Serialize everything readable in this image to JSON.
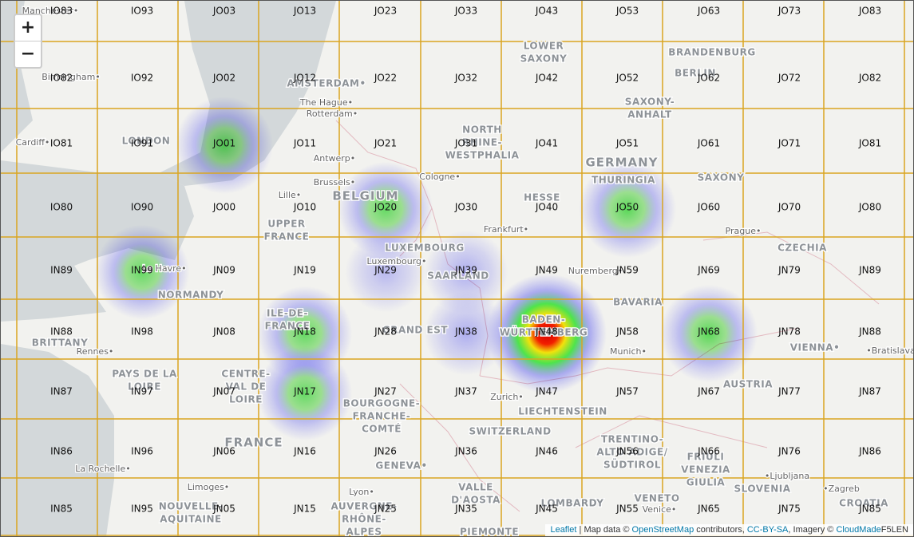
{
  "zoom": {
    "in": "+",
    "out": "−"
  },
  "grid": {
    "rows": [
      [
        "IO83",
        "IO93",
        "JO03",
        "JO13",
        "JO23",
        "JO33",
        "JO43",
        "JO53",
        "JO63",
        "JO73",
        "JO83"
      ],
      [
        "IO82",
        "IO92",
        "JO02",
        "JO12",
        "JO22",
        "JO32",
        "JO42",
        "JO52",
        "JO62",
        "JO72",
        "JO82"
      ],
      [
        "IO81",
        "IO91",
        "JO01",
        "JO11",
        "JO21",
        "JO31",
        "JO41",
        "JO51",
        "JO61",
        "JO71",
        "JO81"
      ],
      [
        "IO80",
        "IO90",
        "JO00",
        "JO10",
        "JO20",
        "JO30",
        "JO40",
        "JO50",
        "JO60",
        "JO70",
        "JO80"
      ],
      [
        "IN89",
        "IN99",
        "JN09",
        "JN19",
        "JN29",
        "JN39",
        "JN49",
        "JN59",
        "JN69",
        "JN79",
        "JN89"
      ],
      [
        "IN88",
        "IN98",
        "JN08",
        "JN18",
        "JN28",
        "JN38",
        "JN48",
        "JN58",
        "JN68",
        "JN78",
        "JN88"
      ],
      [
        "IN87",
        "IN97",
        "JN07",
        "JN17",
        "JN27",
        "JN37",
        "JN47",
        "JN57",
        "JN67",
        "JN77",
        "JN87"
      ],
      [
        "IN86",
        "IN96",
        "JN06",
        "JN16",
        "JN26",
        "JN36",
        "JN46",
        "JN56",
        "JN66",
        "JN76",
        "JN86"
      ],
      [
        "IN85",
        "IN95",
        "JN05",
        "JN15",
        "JN25",
        "JN35",
        "JN45",
        "JN55",
        "JN65",
        "JN75",
        "JN85"
      ]
    ]
  },
  "heat": [
    {
      "cell": "JO01",
      "level": 0.6
    },
    {
      "cell": "IN99",
      "level": 0.55
    },
    {
      "cell": "JO20",
      "level": 0.55
    },
    {
      "cell": "JN29",
      "level": 0.3
    },
    {
      "cell": "JN39",
      "level": 0.35
    },
    {
      "cell": "JN38",
      "level": 0.35
    },
    {
      "cell": "JN48",
      "level": 1.0
    },
    {
      "cell": "JO50",
      "level": 0.6
    },
    {
      "cell": "JN68",
      "level": 0.6
    },
    {
      "cell": "JN18",
      "level": 0.55
    },
    {
      "cell": "JN17",
      "level": 0.55
    }
  ],
  "places": [
    [
      "Manchester•"
    ],
    [
      "Birmingham•"
    ],
    [
      "Cardiff•"
    ],
    [
      "LONDON"
    ],
    [
      "AMSTERDAM•"
    ],
    [
      "The Hague•"
    ],
    [
      "Rotterdam•"
    ],
    [
      "Antwerp•"
    ],
    [
      "Brussels•"
    ],
    [
      "BELGIUM"
    ],
    [
      "Lille•"
    ],
    [
      "UPPER",
      "FRANCE"
    ],
    [
      "LUXEMBOURG"
    ],
    [
      "Luxembourg•"
    ],
    [
      "SAARLAND"
    ],
    [
      "Cologne•"
    ],
    [
      "NORTH",
      "RHINE-",
      "WESTPHALIA"
    ],
    [
      "LOWER",
      "SAXONY"
    ],
    [
      "BRANDENBURG"
    ],
    [
      "BERLIN"
    ],
    [
      "SAXONY-",
      "ANHALT"
    ],
    [
      "GERMANY"
    ],
    [
      "THURINGIA"
    ],
    [
      "SAXONY"
    ],
    [
      "HESSE"
    ],
    [
      "Frankfurt•"
    ],
    [
      "Prague•"
    ],
    [
      "CZECHIA"
    ],
    [
      "Nuremberg•"
    ],
    [
      "BAVARIA"
    ],
    [
      "Munich•"
    ],
    [
      "VIENNA•"
    ],
    [
      "•Bratislava"
    ],
    [
      "AUSTRIA"
    ],
    [
      "Le Havre•"
    ],
    [
      "NORMANDY"
    ],
    [
      "BRITTANY"
    ],
    [
      "Rennes•"
    ],
    [
      "PAYS DE LA",
      "LOIRE"
    ],
    [
      "ILE-DE-",
      "FRANCE"
    ],
    [
      "CENTRE-",
      "VAL DE",
      "LOIRE"
    ],
    [
      "GRAND EST"
    ],
    [
      "BADEN-",
      "WÜRTTEMBERG"
    ],
    [
      "Zurich•"
    ],
    [
      "LIECHTENSTEIN"
    ],
    [
      "SWITZERLAND"
    ],
    [
      "BOURGOGNE-",
      "FRANCHE-",
      "COMTÉ"
    ],
    [
      "FRANCE"
    ],
    [
      "GENEVA•"
    ],
    [
      "La Rochelle•"
    ],
    [
      "Limoges•"
    ],
    [
      "NOUVELLE-",
      "AQUITAINE"
    ],
    [
      "Lyon•"
    ],
    [
      "AUVERGNE-",
      "RHÔNE-",
      "ALPES"
    ],
    [
      "VALLE",
      "D'AOSTA"
    ],
    [
      "LOMBARDY"
    ],
    [
      "PIEMONTE"
    ],
    [
      "TRENTINO-",
      "ALTO ADIGE/",
      "SÜDTIROL"
    ],
    [
      "FRIULI",
      "VENEZIA",
      "GIULIA"
    ],
    [
      "VENETO"
    ],
    [
      "Venice•"
    ],
    [
      "SLOVENIA"
    ],
    [
      "•Ljubljana"
    ],
    [
      "•Zagreb"
    ],
    [
      "CROATIA"
    ]
  ],
  "attribution": {
    "parts": [
      "Leaflet",
      " | Map data © ",
      "OpenStreetMap",
      " contributors, ",
      "CC-BY-SA",
      ", Imagery © ",
      "CloudMade"
    ],
    "callsign": "F5LEN"
  }
}
